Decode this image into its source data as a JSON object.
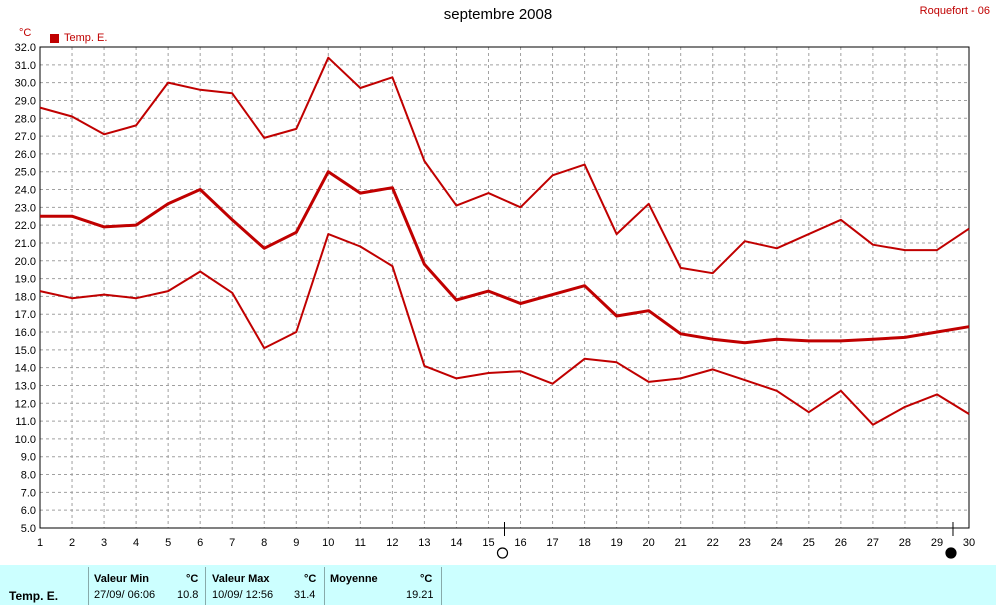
{
  "header": {
    "title": "septembre 2008",
    "station": "Roquefort - 06",
    "unit": "°C"
  },
  "legend": {
    "label": "Temp. E."
  },
  "chart_data": {
    "type": "line",
    "title": "septembre 2008",
    "ylabel": "°C",
    "x": [
      1,
      2,
      3,
      4,
      5,
      6,
      7,
      8,
      9,
      10,
      11,
      12,
      13,
      14,
      15,
      16,
      17,
      18,
      19,
      20,
      21,
      22,
      23,
      24,
      25,
      26,
      27,
      28,
      29,
      30
    ],
    "xlim": [
      1,
      30
    ],
    "ylim": [
      5.0,
      32.0
    ],
    "y_ticks": [
      "5.0",
      "6.0",
      "7.0",
      "8.0",
      "9.0",
      "10.0",
      "11.0",
      "12.0",
      "13.0",
      "14.0",
      "15.0",
      "16.0",
      "17.0",
      "18.0",
      "19.0",
      "20.0",
      "21.0",
      "22.0",
      "23.0",
      "24.0",
      "25.0",
      "26.0",
      "27.0",
      "28.0",
      "29.0",
      "30.0",
      "31.0",
      "32.0"
    ],
    "x_ticks": [
      "1",
      "2",
      "3",
      "4",
      "5",
      "6",
      "7",
      "8",
      "9",
      "10",
      "11",
      "12",
      "13",
      "14",
      "15",
      "16",
      "17",
      "18",
      "19",
      "20",
      "21",
      "22",
      "23",
      "24",
      "25",
      "26",
      "27",
      "28",
      "29",
      "30"
    ],
    "grid": true,
    "legend_position": "top-left",
    "color": "#c00000",
    "series": [
      {
        "name": "Temp. E.",
        "role": "max",
        "values": [
          28.6,
          28.1,
          27.1,
          27.6,
          30.0,
          29.6,
          29.4,
          26.9,
          27.4,
          31.4,
          29.7,
          30.3,
          25.6,
          23.1,
          23.8,
          23.0,
          24.8,
          25.4,
          21.5,
          23.2,
          19.6,
          19.3,
          21.1,
          20.7,
          21.5,
          22.3,
          20.9,
          20.6,
          20.6,
          21.8
        ]
      },
      {
        "name": "Temp. E.",
        "role": "mean",
        "values": [
          22.5,
          22.5,
          21.9,
          22.0,
          23.2,
          24.0,
          22.3,
          20.7,
          21.6,
          25.0,
          23.8,
          24.1,
          19.8,
          17.8,
          18.3,
          17.6,
          18.1,
          18.6,
          16.9,
          17.2,
          15.9,
          15.6,
          15.4,
          15.6,
          15.5,
          15.5,
          15.6,
          15.7,
          16.0,
          16.3
        ]
      },
      {
        "name": "Temp. E.",
        "role": "min",
        "values": [
          18.3,
          17.9,
          18.1,
          17.9,
          18.3,
          19.4,
          18.2,
          15.1,
          16.0,
          21.5,
          20.8,
          19.7,
          14.1,
          13.4,
          13.7,
          13.8,
          13.1,
          14.5,
          14.3,
          13.2,
          13.4,
          13.9,
          13.3,
          12.7,
          11.5,
          12.7,
          10.8,
          11.8,
          12.5,
          11.4
        ]
      }
    ],
    "moon_phases": [
      {
        "day": 15.5,
        "phase": "full-moon"
      },
      {
        "day": 29.5,
        "phase": "new-moon"
      }
    ]
  },
  "footer": {
    "series_label": "Temp. E.",
    "min_heading": "Valeur Min",
    "min_unit": "°C",
    "min_datetime": "27/09/  06:06",
    "min_value": "10.8",
    "max_heading": "Valeur Max",
    "max_unit": "°C",
    "max_datetime": "10/09/  12:56",
    "max_value": "31.4",
    "avg_heading": "Moyenne",
    "avg_unit": "°C",
    "avg_value": "19.21"
  }
}
